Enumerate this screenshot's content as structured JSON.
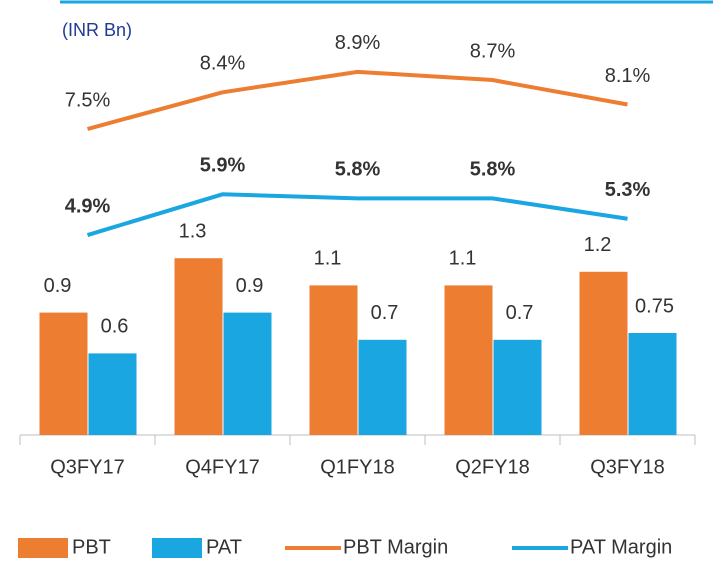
{
  "chart_data": {
    "type": "bar_line",
    "title": "(INR Bn)",
    "categories": [
      "Q3FY17",
      "Q4FY17",
      "Q1FY18",
      "Q2FY18",
      "Q3FY18"
    ],
    "ylim": [
      0,
      3
    ],
    "y2lim": [
      0,
      10
    ],
    "legend": "bottom",
    "series": [
      {
        "name": "PBT",
        "type": "bar",
        "color": "#ED7D31",
        "values": [
          0.9,
          1.3,
          1.1,
          1.1,
          1.2
        ]
      },
      {
        "name": "PAT",
        "type": "bar",
        "color": "#1AA6E0",
        "values": [
          0.6,
          0.9,
          0.7,
          0.7,
          0.75
        ]
      },
      {
        "name": "PBT Margin",
        "type": "line",
        "axis": "y2",
        "color": "#ED7D31",
        "values": [
          7.5,
          8.4,
          8.9,
          8.7,
          8.1
        ],
        "value_labels": [
          "7.5%",
          "8.4%",
          "8.9%",
          "8.7%",
          "8.1%"
        ],
        "bold": false
      },
      {
        "name": "PAT Margin",
        "type": "line",
        "axis": "y2",
        "color": "#1AA6E0",
        "values": [
          4.9,
          5.9,
          5.8,
          5.8,
          5.3
        ],
        "value_labels": [
          "4.9%",
          "5.9%",
          "5.8%",
          "5.8%",
          "5.3%"
        ],
        "bold": true
      }
    ]
  }
}
